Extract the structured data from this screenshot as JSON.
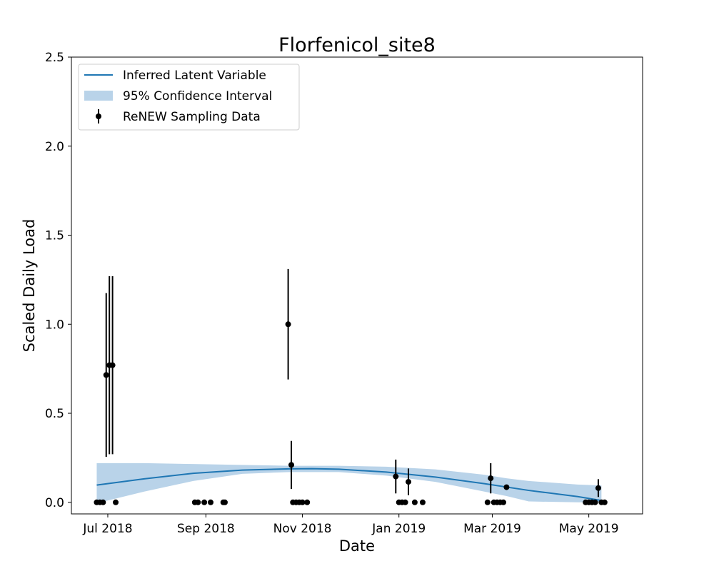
{
  "chart_data": {
    "type": "line",
    "title": "Florfenicol_site8",
    "xlabel": "Date",
    "ylabel": "Scaled Daily Load",
    "xlim": [
      "2018-06-08",
      "2019-06-04"
    ],
    "ylim": [
      -0.065,
      2.5
    ],
    "x_ticks": [
      {
        "date": "2018-07-01",
        "label": "Jul 2018"
      },
      {
        "date": "2018-09-01",
        "label": "Sep 2018"
      },
      {
        "date": "2018-11-01",
        "label": "Nov 2018"
      },
      {
        "date": "2019-01-01",
        "label": "Jan 2019"
      },
      {
        "date": "2019-03-01",
        "label": "Mar 2019"
      },
      {
        "date": "2019-05-01",
        "label": "May 2019"
      }
    ],
    "y_ticks": [
      {
        "value": 0.0,
        "label": "0.0"
      },
      {
        "value": 0.5,
        "label": "0.5"
      },
      {
        "value": 1.0,
        "label": "1.0"
      },
      {
        "value": 1.5,
        "label": "1.5"
      },
      {
        "value": 2.0,
        "label": "2.0"
      },
      {
        "value": 2.5,
        "label": "2.5"
      }
    ],
    "grid": false,
    "legend_position": "top-left",
    "legend": [
      {
        "label": "Inferred Latent Variable",
        "kind": "line"
      },
      {
        "label": "95% Confidence Interval",
        "kind": "band"
      },
      {
        "label": "ReNEW Sampling Data",
        "kind": "errorbar"
      }
    ],
    "colors": {
      "latent": "#1f77b4",
      "band": "#b9d3e9",
      "points": "#000000"
    },
    "latent": {
      "x": [
        "2018-06-24",
        "2018-07-24",
        "2018-08-24",
        "2018-09-24",
        "2018-10-24",
        "2018-11-07",
        "2018-11-24",
        "2018-12-24",
        "2019-01-24",
        "2019-02-24",
        "2019-03-24",
        "2019-04-24",
        "2019-05-09"
      ],
      "y": [
        0.097,
        0.132,
        0.163,
        0.181,
        0.188,
        0.189,
        0.186,
        0.17,
        0.142,
        0.105,
        0.067,
        0.032,
        0.01
      ]
    },
    "confidence_band": {
      "x": [
        "2018-06-24",
        "2018-07-24",
        "2018-08-24",
        "2018-09-24",
        "2018-10-24",
        "2018-11-24",
        "2018-12-24",
        "2019-01-24",
        "2019-02-24",
        "2019-03-10",
        "2019-03-24",
        "2019-04-24",
        "2019-05-09"
      ],
      "lower": [
        -0.005,
        0.06,
        0.12,
        0.16,
        0.17,
        0.17,
        0.15,
        0.115,
        0.06,
        0.035,
        0.005,
        0.0,
        0.0
      ],
      "upper": [
        0.22,
        0.22,
        0.215,
        0.21,
        0.205,
        0.205,
        0.2,
        0.185,
        0.155,
        0.135,
        0.12,
        0.1,
        0.095
      ]
    },
    "samples": [
      {
        "x": "2018-06-24",
        "y": 0.0
      },
      {
        "x": "2018-06-26",
        "y": 0.0
      },
      {
        "x": "2018-06-28",
        "y": 0.0
      },
      {
        "x": "2018-06-30",
        "y": 0.715,
        "err": 0.46
      },
      {
        "x": "2018-07-02",
        "y": 0.77,
        "err": 0.5
      },
      {
        "x": "2018-07-04",
        "y": 0.77,
        "err": 0.5
      },
      {
        "x": "2018-07-06",
        "y": 0.0
      },
      {
        "x": "2018-08-25",
        "y": 0.0
      },
      {
        "x": "2018-08-27",
        "y": 0.0
      },
      {
        "x": "2018-08-31",
        "y": 0.0
      },
      {
        "x": "2018-09-04",
        "y": 0.0
      },
      {
        "x": "2018-09-12",
        "y": 0.0
      },
      {
        "x": "2018-09-13",
        "y": 0.0
      },
      {
        "x": "2018-10-23",
        "y": 1.0,
        "err": 0.31
      },
      {
        "x": "2018-10-25",
        "y": 0.21,
        "err": 0.135
      },
      {
        "x": "2018-10-26",
        "y": 0.0
      },
      {
        "x": "2018-10-28",
        "y": 0.0
      },
      {
        "x": "2018-10-30",
        "y": 0.0
      },
      {
        "x": "2018-11-01",
        "y": 0.0
      },
      {
        "x": "2018-11-04",
        "y": 0.0
      },
      {
        "x": "2018-12-30",
        "y": 0.145,
        "err": 0.095
      },
      {
        "x": "2019-01-01",
        "y": 0.0
      },
      {
        "x": "2019-01-03",
        "y": 0.0
      },
      {
        "x": "2019-01-05",
        "y": 0.0
      },
      {
        "x": "2019-01-07",
        "y": 0.115,
        "err": 0.075
      },
      {
        "x": "2019-01-11",
        "y": 0.0
      },
      {
        "x": "2019-01-16",
        "y": 0.0
      },
      {
        "x": "2019-02-26",
        "y": 0.0
      },
      {
        "x": "2019-02-28",
        "y": 0.135,
        "err": 0.085
      },
      {
        "x": "2019-03-02",
        "y": 0.0
      },
      {
        "x": "2019-03-04",
        "y": 0.0
      },
      {
        "x": "2019-03-06",
        "y": 0.0
      },
      {
        "x": "2019-03-08",
        "y": 0.0
      },
      {
        "x": "2019-03-10",
        "y": 0.085
      },
      {
        "x": "2019-04-29",
        "y": 0.0
      },
      {
        "x": "2019-05-01",
        "y": 0.0
      },
      {
        "x": "2019-05-03",
        "y": 0.0
      },
      {
        "x": "2019-05-05",
        "y": 0.0
      },
      {
        "x": "2019-05-07",
        "y": 0.08,
        "err": 0.05
      },
      {
        "x": "2019-05-09",
        "y": 0.0
      },
      {
        "x": "2019-05-11",
        "y": 0.0
      }
    ]
  }
}
